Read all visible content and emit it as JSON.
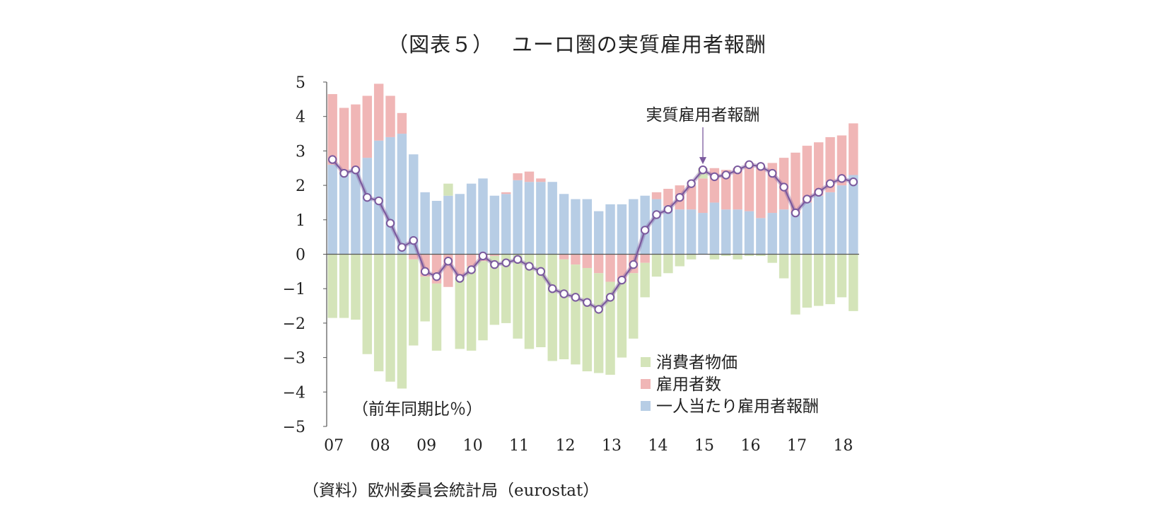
{
  "figure": {
    "title": "（図表５）　 ユーロ圏の実質雇用者報酬",
    "source": "（資料）欧州委員会統計局（eurostat）"
  },
  "chart_data": {
    "type": "bar",
    "stacked": true,
    "unit_label": "（前年同期比％）",
    "ylim": [
      -5,
      5
    ],
    "yticks": [
      "5",
      "4",
      "3",
      "2",
      "1",
      "0",
      "−1",
      "−2",
      "−3",
      "−4",
      "−5"
    ],
    "year_labels": [
      "07",
      "08",
      "09",
      "10",
      "11",
      "12",
      "13",
      "14",
      "15",
      "16",
      "17",
      "18"
    ],
    "period_count": 46,
    "first_period": "2007Q1",
    "series": [
      {
        "name": "一人当たり雇用者報酬",
        "color": "#b7cde5",
        "values": [
          2.6,
          2.4,
          2.5,
          2.8,
          3.3,
          3.4,
          3.5,
          2.9,
          1.8,
          1.55,
          1.7,
          1.75,
          2.05,
          2.2,
          1.7,
          1.75,
          2.15,
          2.1,
          2.1,
          2.1,
          1.75,
          1.6,
          1.6,
          1.25,
          1.45,
          1.45,
          1.6,
          1.7,
          1.6,
          1.4,
          1.3,
          1.3,
          1.2,
          1.5,
          1.3,
          1.3,
          1.25,
          1.05,
          1.2,
          1.3,
          1.2,
          1.5,
          1.7,
          1.8,
          2.0,
          2.3
        ]
      },
      {
        "name": "雇用者数",
        "color": "#f0b6b6",
        "values": [
          2.05,
          1.85,
          1.85,
          1.8,
          1.65,
          1.2,
          0.6,
          -0.15,
          -0.65,
          -0.85,
          -0.95,
          -0.65,
          -0.35,
          -0.2,
          -0.05,
          0.05,
          0.2,
          0.3,
          0.1,
          0.0,
          -0.15,
          -0.3,
          -0.4,
          -0.55,
          -0.8,
          -0.8,
          -0.55,
          -0.25,
          0.2,
          0.5,
          0.7,
          0.7,
          1.0,
          1.0,
          1.15,
          1.2,
          1.4,
          1.5,
          1.45,
          1.5,
          1.75,
          1.65,
          1.55,
          1.6,
          1.45,
          1.5
        ]
      },
      {
        "name": "消費者物価",
        "color": "#d4e4b9",
        "values": [
          -1.85,
          -1.85,
          -1.9,
          -2.9,
          -3.4,
          -3.7,
          -3.9,
          -2.5,
          -1.3,
          -1.95,
          0.35,
          -2.1,
          -2.45,
          -2.3,
          -2.0,
          -2.0,
          -2.45,
          -2.75,
          -2.7,
          -3.1,
          -2.9,
          -2.9,
          -3.0,
          -2.9,
          -2.7,
          -2.2,
          -1.9,
          -1.0,
          -0.65,
          -0.55,
          -0.35,
          -0.15,
          0.3,
          -0.15,
          -0.05,
          -0.15,
          -0.05,
          -0.05,
          -0.25,
          -0.7,
          -1.75,
          -1.55,
          -1.5,
          -1.45,
          -1.25,
          -1.65
        ]
      }
    ],
    "line": {
      "name": "実質雇用者報酬",
      "color": "#7b5a9e",
      "values": [
        2.75,
        2.35,
        2.45,
        1.65,
        1.55,
        0.9,
        0.2,
        0.4,
        -0.5,
        -0.65,
        -0.2,
        -0.7,
        -0.45,
        -0.05,
        -0.3,
        -0.25,
        -0.15,
        -0.35,
        -0.5,
        -1.0,
        -1.15,
        -1.25,
        -1.4,
        -1.6,
        -1.25,
        -0.75,
        -0.3,
        0.7,
        1.15,
        1.3,
        1.65,
        2.05,
        2.45,
        2.25,
        2.3,
        2.45,
        2.6,
        2.55,
        2.35,
        1.95,
        1.2,
        1.6,
        1.8,
        2.05,
        2.2,
        2.1
      ]
    },
    "annotation": {
      "text": "実質雇用者報酬",
      "at_period": 32
    },
    "legend": {
      "position": "bottom-right",
      "items": [
        "消費者物価",
        "雇用者数",
        "一人当たり雇用者報酬"
      ]
    }
  }
}
